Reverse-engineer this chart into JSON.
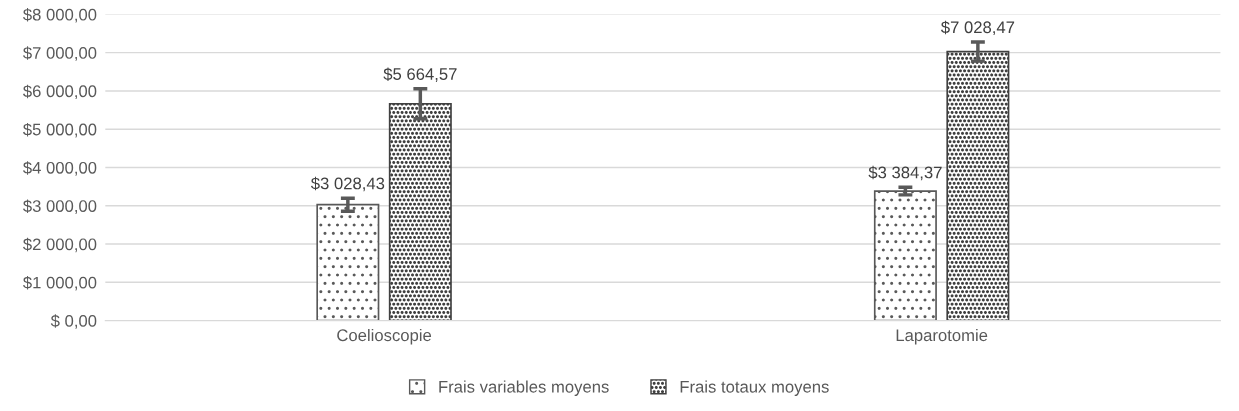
{
  "chart_data": {
    "type": "bar",
    "categories": [
      "Coelioscopie",
      "Laparotomie"
    ],
    "series": [
      {
        "name": "Frais variables moyens",
        "color": "#595959",
        "values": [
          3028.43,
          3384.37
        ],
        "errors": [
          170,
          100
        ],
        "value_labels": [
          "$3 028,43",
          "$3 384,37"
        ]
      },
      {
        "name": "Frais totaux moyens",
        "color": "#404040",
        "values": [
          5664.57,
          7028.47
        ],
        "errors": [
          390,
          250
        ],
        "value_labels": [
          "$5 664,57",
          "$7 028,47"
        ]
      }
    ],
    "ylim": [
      0,
      8000
    ],
    "yticks": [
      {
        "value": 0,
        "label": "$ 0,00"
      },
      {
        "value": 1000,
        "label": "$1 000,00"
      },
      {
        "value": 2000,
        "label": "$2 000,00"
      },
      {
        "value": 3000,
        "label": "$3 000,00"
      },
      {
        "value": 4000,
        "label": "$4 000,00"
      },
      {
        "value": 5000,
        "label": "$5 000,00"
      },
      {
        "value": 6000,
        "label": "$6 000,00"
      },
      {
        "value": 7000,
        "label": "$7 000,00"
      },
      {
        "value": 8000,
        "label": "$8 000,00"
      }
    ],
    "grid": "y",
    "legend": "bottom"
  }
}
